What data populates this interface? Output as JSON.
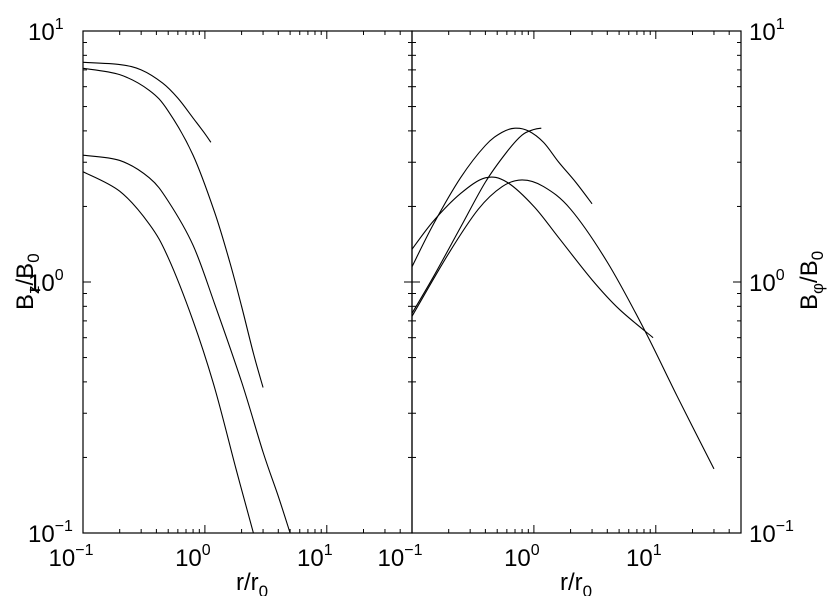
{
  "chart_data": [
    {
      "type": "line",
      "panel": "left",
      "x_scale": "log",
      "y_scale": "log",
      "xlim": [
        0.1,
        50
      ],
      "ylim": [
        0.1,
        10
      ],
      "xlabel": {
        "main": "r/r",
        "sub": "0"
      },
      "ylabel": {
        "main": "B",
        "sub1": "z",
        "mid": "/B",
        "sub2": "0"
      },
      "x_ticks": [
        {
          "base": "10",
          "exp": "−1",
          "value": 0.1
        },
        {
          "base": "10",
          "exp": "0",
          "value": 1
        },
        {
          "base": "10",
          "exp": "1",
          "value": 10
        }
      ],
      "y_ticks": [
        {
          "base": "10",
          "exp": "−1",
          "value": 0.1
        },
        {
          "base": "10",
          "exp": "0",
          "value": 1
        },
        {
          "base": "10",
          "exp": "1",
          "value": 10
        }
      ],
      "series": [
        {
          "x": [
            0.1,
            0.2,
            0.3,
            0.45,
            0.6,
            0.8,
            1.0,
            1.12
          ],
          "y": [
            7.5,
            7.35,
            7.0,
            6.2,
            5.4,
            4.5,
            3.9,
            3.6
          ]
        },
        {
          "x": [
            0.1,
            0.2,
            0.35,
            0.5,
            0.8,
            1.2,
            1.6,
            2.0,
            2.5,
            3.0
          ],
          "y": [
            7.1,
            6.7,
            5.8,
            4.8,
            3.2,
            1.9,
            1.2,
            0.8,
            0.52,
            0.38
          ]
        },
        {
          "x": [
            0.1,
            0.2,
            0.35,
            0.5,
            0.8,
            1.2,
            2.0,
            3.0,
            4.0,
            5.0
          ],
          "y": [
            3.2,
            3.05,
            2.6,
            2.1,
            1.4,
            0.82,
            0.4,
            0.21,
            0.14,
            0.1
          ]
        },
        {
          "x": [
            0.1,
            0.2,
            0.35,
            0.5,
            0.8,
            1.2,
            1.8,
            2.5
          ],
          "y": [
            2.75,
            2.3,
            1.7,
            1.25,
            0.7,
            0.38,
            0.18,
            0.1
          ]
        }
      ]
    },
    {
      "type": "line",
      "panel": "right",
      "x_scale": "log",
      "y_scale": "log",
      "xlim": [
        0.1,
        50
      ],
      "ylim": [
        0.1,
        10
      ],
      "xlabel": {
        "main": "r/r",
        "sub": "0"
      },
      "ylabel": {
        "main": "B",
        "sub1": "φ",
        "mid": "/B",
        "sub2": "0"
      },
      "x_ticks": [
        {
          "base": "10",
          "exp": "−1",
          "value": 0.1
        },
        {
          "base": "10",
          "exp": "0",
          "value": 1
        },
        {
          "base": "10",
          "exp": "1",
          "value": 10
        }
      ],
      "y_ticks": [
        {
          "base": "10",
          "exp": "−1",
          "value": 0.1
        },
        {
          "base": "10",
          "exp": "0",
          "value": 1
        },
        {
          "base": "10",
          "exp": "1",
          "value": 10
        }
      ],
      "series": [
        {
          "x": [
            0.1,
            0.15,
            0.25,
            0.4,
            0.55,
            0.7,
            0.9,
            1.2,
            1.6,
            2.2,
            3.0
          ],
          "y": [
            1.15,
            1.7,
            2.6,
            3.5,
            3.95,
            4.1,
            4.0,
            3.6,
            3.0,
            2.5,
            2.05
          ]
        },
        {
          "x": [
            0.1,
            0.15,
            0.25,
            0.4,
            0.6,
            0.8,
            1.0,
            1.15
          ],
          "y": [
            0.75,
            1.05,
            1.65,
            2.5,
            3.3,
            3.85,
            4.05,
            4.1
          ]
        },
        {
          "x": [
            0.1,
            0.15,
            0.25,
            0.4,
            0.6,
            1.0,
            1.6,
            3.0,
            5.0,
            9.5
          ],
          "y": [
            1.35,
            1.75,
            2.25,
            2.6,
            2.5,
            2.0,
            1.5,
            1.02,
            0.78,
            0.6
          ]
        },
        {
          "x": [
            0.1,
            0.2,
            0.35,
            0.55,
            0.8,
            1.2,
            2.0,
            4.0,
            8.0,
            15.0,
            30.0
          ],
          "y": [
            0.73,
            1.3,
            1.95,
            2.4,
            2.55,
            2.4,
            1.95,
            1.2,
            0.65,
            0.35,
            0.18
          ]
        }
      ]
    }
  ]
}
